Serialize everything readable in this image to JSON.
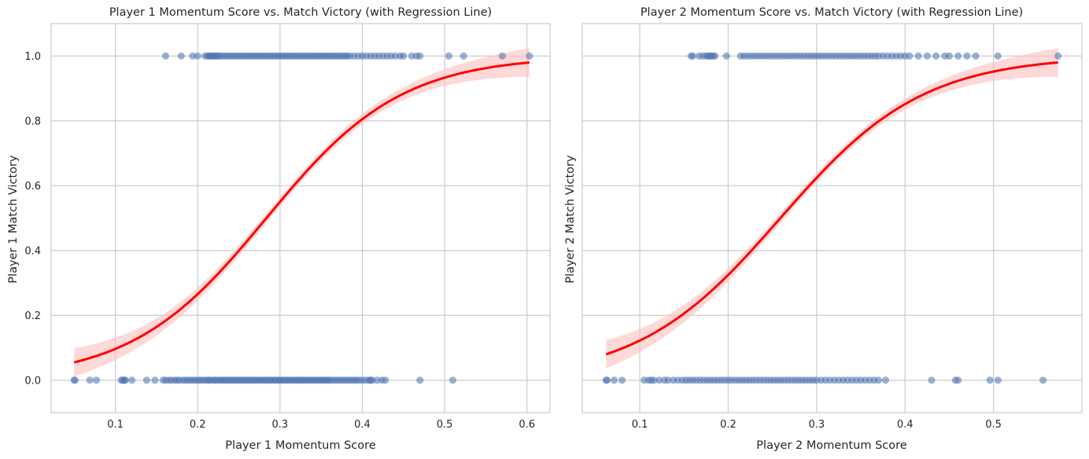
{
  "chart_data": [
    {
      "type": "scatter",
      "title": "Player 1 Momentum Score vs. Match Victory (with Regression Line)",
      "xlabel": "Player 1 Momentum Score",
      "ylabel": "Player 1 Match Victory",
      "xlim": [
        0.022,
        0.628
      ],
      "ylim": [
        -0.1,
        1.1
      ],
      "xticks": [
        "0.1",
        "0.2",
        "0.3",
        "0.4",
        "0.5",
        "0.6"
      ],
      "yticks": [
        "0.0",
        "0.2",
        "0.4",
        "0.6",
        "0.8",
        "1.0"
      ],
      "grid": true,
      "point_color": "#4c72b0",
      "line_color": "#ff0000",
      "band_color": "#ffc0c0",
      "regression": {
        "x_range": [
          0.05,
          0.603
        ],
        "y_at_min": 0.055,
        "y_at_max": 0.98
      },
      "points_y0": [
        0.05,
        0.051,
        0.069,
        0.077,
        0.107,
        0.109,
        0.111,
        0.112,
        0.12,
        0.138,
        0.148,
        0.158,
        0.161,
        0.165,
        0.168,
        0.172,
        0.175,
        0.178,
        0.182,
        0.185,
        0.188,
        0.191,
        0.194,
        0.197,
        0.2,
        0.203,
        0.206,
        0.209,
        0.212,
        0.214,
        0.217,
        0.22,
        0.222,
        0.225,
        0.228,
        0.23,
        0.233,
        0.235,
        0.238,
        0.24,
        0.243,
        0.245,
        0.248,
        0.25,
        0.253,
        0.255,
        0.258,
        0.26,
        0.263,
        0.265,
        0.268,
        0.27,
        0.273,
        0.275,
        0.278,
        0.28,
        0.283,
        0.285,
        0.288,
        0.29,
        0.293,
        0.295,
        0.298,
        0.3,
        0.303,
        0.305,
        0.308,
        0.31,
        0.313,
        0.315,
        0.318,
        0.32,
        0.323,
        0.325,
        0.328,
        0.33,
        0.333,
        0.335,
        0.338,
        0.34,
        0.343,
        0.345,
        0.348,
        0.35,
        0.353,
        0.355,
        0.358,
        0.36,
        0.363,
        0.366,
        0.369,
        0.372,
        0.375,
        0.378,
        0.381,
        0.384,
        0.387,
        0.39,
        0.393,
        0.396,
        0.4,
        0.404,
        0.408,
        0.41,
        0.412,
        0.418,
        0.424,
        0.428,
        0.47,
        0.51
      ],
      "points_y1": [
        0.161,
        0.18,
        0.194,
        0.2,
        0.209,
        0.212,
        0.214,
        0.216,
        0.218,
        0.22,
        0.222,
        0.224,
        0.226,
        0.229,
        0.232,
        0.235,
        0.238,
        0.241,
        0.244,
        0.247,
        0.25,
        0.253,
        0.256,
        0.259,
        0.262,
        0.265,
        0.268,
        0.271,
        0.274,
        0.277,
        0.28,
        0.283,
        0.286,
        0.289,
        0.292,
        0.295,
        0.298,
        0.301,
        0.304,
        0.307,
        0.31,
        0.313,
        0.316,
        0.319,
        0.322,
        0.325,
        0.328,
        0.331,
        0.334,
        0.337,
        0.34,
        0.343,
        0.346,
        0.349,
        0.352,
        0.355,
        0.358,
        0.361,
        0.364,
        0.367,
        0.37,
        0.373,
        0.376,
        0.379,
        0.382,
        0.385,
        0.39,
        0.395,
        0.4,
        0.405,
        0.41,
        0.415,
        0.42,
        0.425,
        0.43,
        0.435,
        0.44,
        0.446,
        0.45,
        0.46,
        0.466,
        0.47,
        0.505,
        0.523,
        0.57,
        0.603
      ]
    },
    {
      "type": "scatter",
      "title": "Player 2 Momentum Score vs. Match Victory (with Regression Line)",
      "xlabel": "Player 2 Momentum Score",
      "ylabel": "Player 2 Match Victory",
      "xlim": [
        0.035,
        0.6
      ],
      "ylim": [
        -0.1,
        1.1
      ],
      "xticks": [
        "0.1",
        "0.2",
        "0.3",
        "0.4",
        "0.5"
      ],
      "yticks": [
        "0.0",
        "0.2",
        "0.4",
        "0.6",
        "0.8",
        "1.0"
      ],
      "grid": true,
      "point_color": "#4c72b0",
      "line_color": "#ff0000",
      "band_color": "#ffc0c0",
      "regression": {
        "x_range": [
          0.062,
          0.573
        ],
        "y_at_min": 0.08,
        "y_at_max": 0.98
      },
      "points_y0": [
        0.062,
        0.063,
        0.071,
        0.08,
        0.105,
        0.11,
        0.113,
        0.116,
        0.122,
        0.128,
        0.132,
        0.138,
        0.143,
        0.148,
        0.152,
        0.156,
        0.16,
        0.164,
        0.168,
        0.172,
        0.176,
        0.18,
        0.184,
        0.188,
        0.192,
        0.196,
        0.2,
        0.204,
        0.208,
        0.212,
        0.216,
        0.22,
        0.224,
        0.228,
        0.232,
        0.236,
        0.24,
        0.244,
        0.248,
        0.252,
        0.256,
        0.26,
        0.264,
        0.268,
        0.272,
        0.276,
        0.28,
        0.284,
        0.288,
        0.292,
        0.296,
        0.3,
        0.305,
        0.31,
        0.315,
        0.32,
        0.325,
        0.33,
        0.335,
        0.34,
        0.345,
        0.35,
        0.355,
        0.36,
        0.365,
        0.37,
        0.378,
        0.43,
        0.457,
        0.46,
        0.496,
        0.505,
        0.556
      ],
      "points_y1": [
        0.158,
        0.16,
        0.167,
        0.171,
        0.175,
        0.177,
        0.179,
        0.181,
        0.183,
        0.185,
        0.198,
        0.214,
        0.218,
        0.222,
        0.226,
        0.23,
        0.234,
        0.238,
        0.242,
        0.246,
        0.25,
        0.254,
        0.258,
        0.262,
        0.266,
        0.27,
        0.274,
        0.278,
        0.282,
        0.286,
        0.29,
        0.294,
        0.298,
        0.302,
        0.306,
        0.31,
        0.314,
        0.318,
        0.322,
        0.326,
        0.33,
        0.334,
        0.338,
        0.342,
        0.346,
        0.35,
        0.354,
        0.358,
        0.362,
        0.366,
        0.37,
        0.375,
        0.38,
        0.385,
        0.39,
        0.395,
        0.4,
        0.405,
        0.415,
        0.425,
        0.435,
        0.445,
        0.45,
        0.46,
        0.47,
        0.48,
        0.505,
        0.573
      ]
    }
  ]
}
